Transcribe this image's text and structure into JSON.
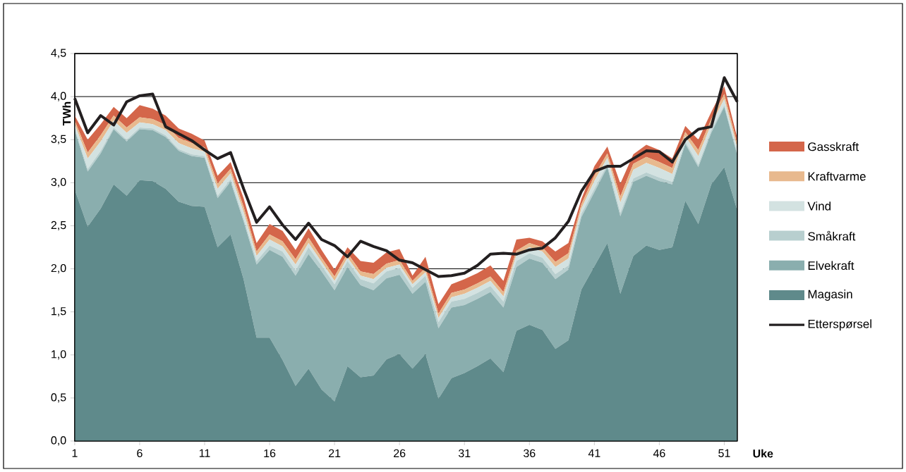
{
  "chart_data": {
    "type": "area",
    "stacked": true,
    "xlabel": "Uke",
    "ylabel": "TWh",
    "x": [
      1,
      2,
      3,
      4,
      5,
      6,
      7,
      8,
      9,
      10,
      11,
      12,
      13,
      14,
      15,
      16,
      17,
      18,
      19,
      20,
      21,
      22,
      23,
      24,
      25,
      26,
      27,
      28,
      29,
      30,
      31,
      32,
      33,
      34,
      35,
      36,
      37,
      38,
      39,
      40,
      41,
      42,
      43,
      44,
      45,
      46,
      47,
      48,
      49,
      50,
      51,
      52
    ],
    "xlim": [
      1,
      52
    ],
    "xticks": [
      1,
      6,
      11,
      16,
      21,
      26,
      31,
      36,
      41,
      46,
      51
    ],
    "ylim": [
      0,
      4.5
    ],
    "yticks": [
      {
        "value": 0,
        "label": "0,0"
      },
      {
        "value": 0.5,
        "label": "0,5"
      },
      {
        "value": 1,
        "label": "1,0"
      },
      {
        "value": 1.5,
        "label": "1,5"
      },
      {
        "value": 2,
        "label": "2,0"
      },
      {
        "value": 2.5,
        "label": "2,5"
      },
      {
        "value": 3,
        "label": "3,0"
      },
      {
        "value": 3.5,
        "label": "3,5"
      },
      {
        "value": 4,
        "label": "4,0"
      },
      {
        "value": 4.5,
        "label": "4,5"
      }
    ],
    "grid": "y",
    "legend": "right",
    "series": [
      {
        "name": "Magasin",
        "color": "#5f8a8b",
        "values": [
          2.92,
          2.49,
          2.7,
          2.98,
          2.85,
          3.03,
          3.02,
          2.93,
          2.78,
          2.73,
          2.72,
          2.25,
          2.4,
          1.88,
          1.2,
          1.2,
          0.94,
          0.64,
          0.84,
          0.6,
          0.46,
          0.87,
          0.74,
          0.76,
          0.95,
          1.01,
          0.84,
          1.01,
          0.49,
          0.73,
          0.79,
          0.87,
          0.96,
          0.8,
          1.28,
          1.35,
          1.29,
          1.07,
          1.17,
          1.76,
          2.03,
          2.3,
          1.71,
          2.15,
          2.27,
          2.22,
          2.25,
          2.79,
          2.52,
          2.98,
          3.18,
          2.68
        ]
      },
      {
        "name": "Elvekraft",
        "color": "#8aaeae",
        "values": [
          0.69,
          0.64,
          0.64,
          0.64,
          0.63,
          0.59,
          0.59,
          0.6,
          0.59,
          0.58,
          0.57,
          0.57,
          0.61,
          0.67,
          0.85,
          1.02,
          1.2,
          1.28,
          1.33,
          1.37,
          1.29,
          1.15,
          1.07,
          0.99,
          0.94,
          0.92,
          0.87,
          0.84,
          0.82,
          0.82,
          0.79,
          0.78,
          0.77,
          0.75,
          0.74,
          0.77,
          0.78,
          0.81,
          0.82,
          0.84,
          0.86,
          0.88,
          0.9,
          0.86,
          0.81,
          0.8,
          0.73,
          0.66,
          0.66,
          0.6,
          0.7,
          0.64
        ]
      },
      {
        "name": "Småkraft",
        "color": "#b8cfcf",
        "values": [
          0.02,
          0.03,
          0.03,
          0.02,
          0.02,
          0.02,
          0.02,
          0.02,
          0.02,
          0.02,
          0.02,
          0.03,
          0.03,
          0.03,
          0.04,
          0.05,
          0.06,
          0.06,
          0.08,
          0.07,
          0.07,
          0.07,
          0.07,
          0.08,
          0.08,
          0.08,
          0.07,
          0.07,
          0.07,
          0.07,
          0.07,
          0.07,
          0.07,
          0.07,
          0.07,
          0.06,
          0.06,
          0.06,
          0.05,
          0.04,
          0.04,
          0.03,
          0.04,
          0.04,
          0.04,
          0.04,
          0.03,
          0.03,
          0.03,
          0.03,
          0.02,
          0.02
        ]
      },
      {
        "name": "Vind",
        "color": "#d3e2e1",
        "values": [
          0.05,
          0.12,
          0.11,
          0.08,
          0.08,
          0.06,
          0.05,
          0.06,
          0.07,
          0.07,
          0.05,
          0.08,
          0.07,
          0.08,
          0.06,
          0.07,
          0.06,
          0.07,
          0.05,
          0.04,
          0.04,
          0.04,
          0.04,
          0.05,
          0.04,
          0.04,
          0.04,
          0.04,
          0.05,
          0.05,
          0.06,
          0.06,
          0.06,
          0.06,
          0.07,
          0.07,
          0.07,
          0.08,
          0.08,
          0.06,
          0.09,
          0.08,
          0.12,
          0.1,
          0.11,
          0.11,
          0.09,
          0.06,
          0.1,
          0.07,
          0.07,
          0.06
        ]
      },
      {
        "name": "Kraftvarme",
        "color": "#e8b98e",
        "values": [
          0.04,
          0.07,
          0.07,
          0.06,
          0.06,
          0.06,
          0.06,
          0.06,
          0.06,
          0.06,
          0.05,
          0.06,
          0.05,
          0.06,
          0.05,
          0.06,
          0.06,
          0.06,
          0.06,
          0.05,
          0.05,
          0.05,
          0.05,
          0.06,
          0.05,
          0.05,
          0.04,
          0.05,
          0.05,
          0.05,
          0.05,
          0.05,
          0.05,
          0.05,
          0.05,
          0.05,
          0.05,
          0.06,
          0.06,
          0.05,
          0.06,
          0.05,
          0.07,
          0.07,
          0.07,
          0.07,
          0.07,
          0.05,
          0.07,
          0.06,
          0.06,
          0.05
        ]
      },
      {
        "name": "Gasskraft",
        "color": "#d4664a",
        "values": [
          0.06,
          0.15,
          0.13,
          0.1,
          0.11,
          0.14,
          0.12,
          0.11,
          0.11,
          0.11,
          0.08,
          0.09,
          0.08,
          0.1,
          0.1,
          0.12,
          0.12,
          0.11,
          0.11,
          0.09,
          0.08,
          0.07,
          0.12,
          0.13,
          0.13,
          0.13,
          0.06,
          0.13,
          0.11,
          0.1,
          0.12,
          0.12,
          0.13,
          0.13,
          0.13,
          0.06,
          0.07,
          0.12,
          0.12,
          0.06,
          0.11,
          0.08,
          0.15,
          0.11,
          0.14,
          0.14,
          0.11,
          0.07,
          0.12,
          0.08,
          0.09,
          0.07
        ]
      },
      {
        "name": "Etterspørsel",
        "type": "line",
        "color": "#231f20",
        "values": [
          3.98,
          3.58,
          3.78,
          3.67,
          3.94,
          4.01,
          4.03,
          3.65,
          3.57,
          3.49,
          3.38,
          3.28,
          3.35,
          2.93,
          2.54,
          2.72,
          2.51,
          2.34,
          2.53,
          2.34,
          2.27,
          2.14,
          2.32,
          2.26,
          2.21,
          2.1,
          2.07,
          1.99,
          1.91,
          1.92,
          1.95,
          2.04,
          2.17,
          2.18,
          2.17,
          2.22,
          2.24,
          2.36,
          2.55,
          2.9,
          3.13,
          3.19,
          3.19,
          3.28,
          3.37,
          3.36,
          3.24,
          3.5,
          3.62,
          3.65,
          4.22,
          3.94
        ]
      }
    ]
  }
}
